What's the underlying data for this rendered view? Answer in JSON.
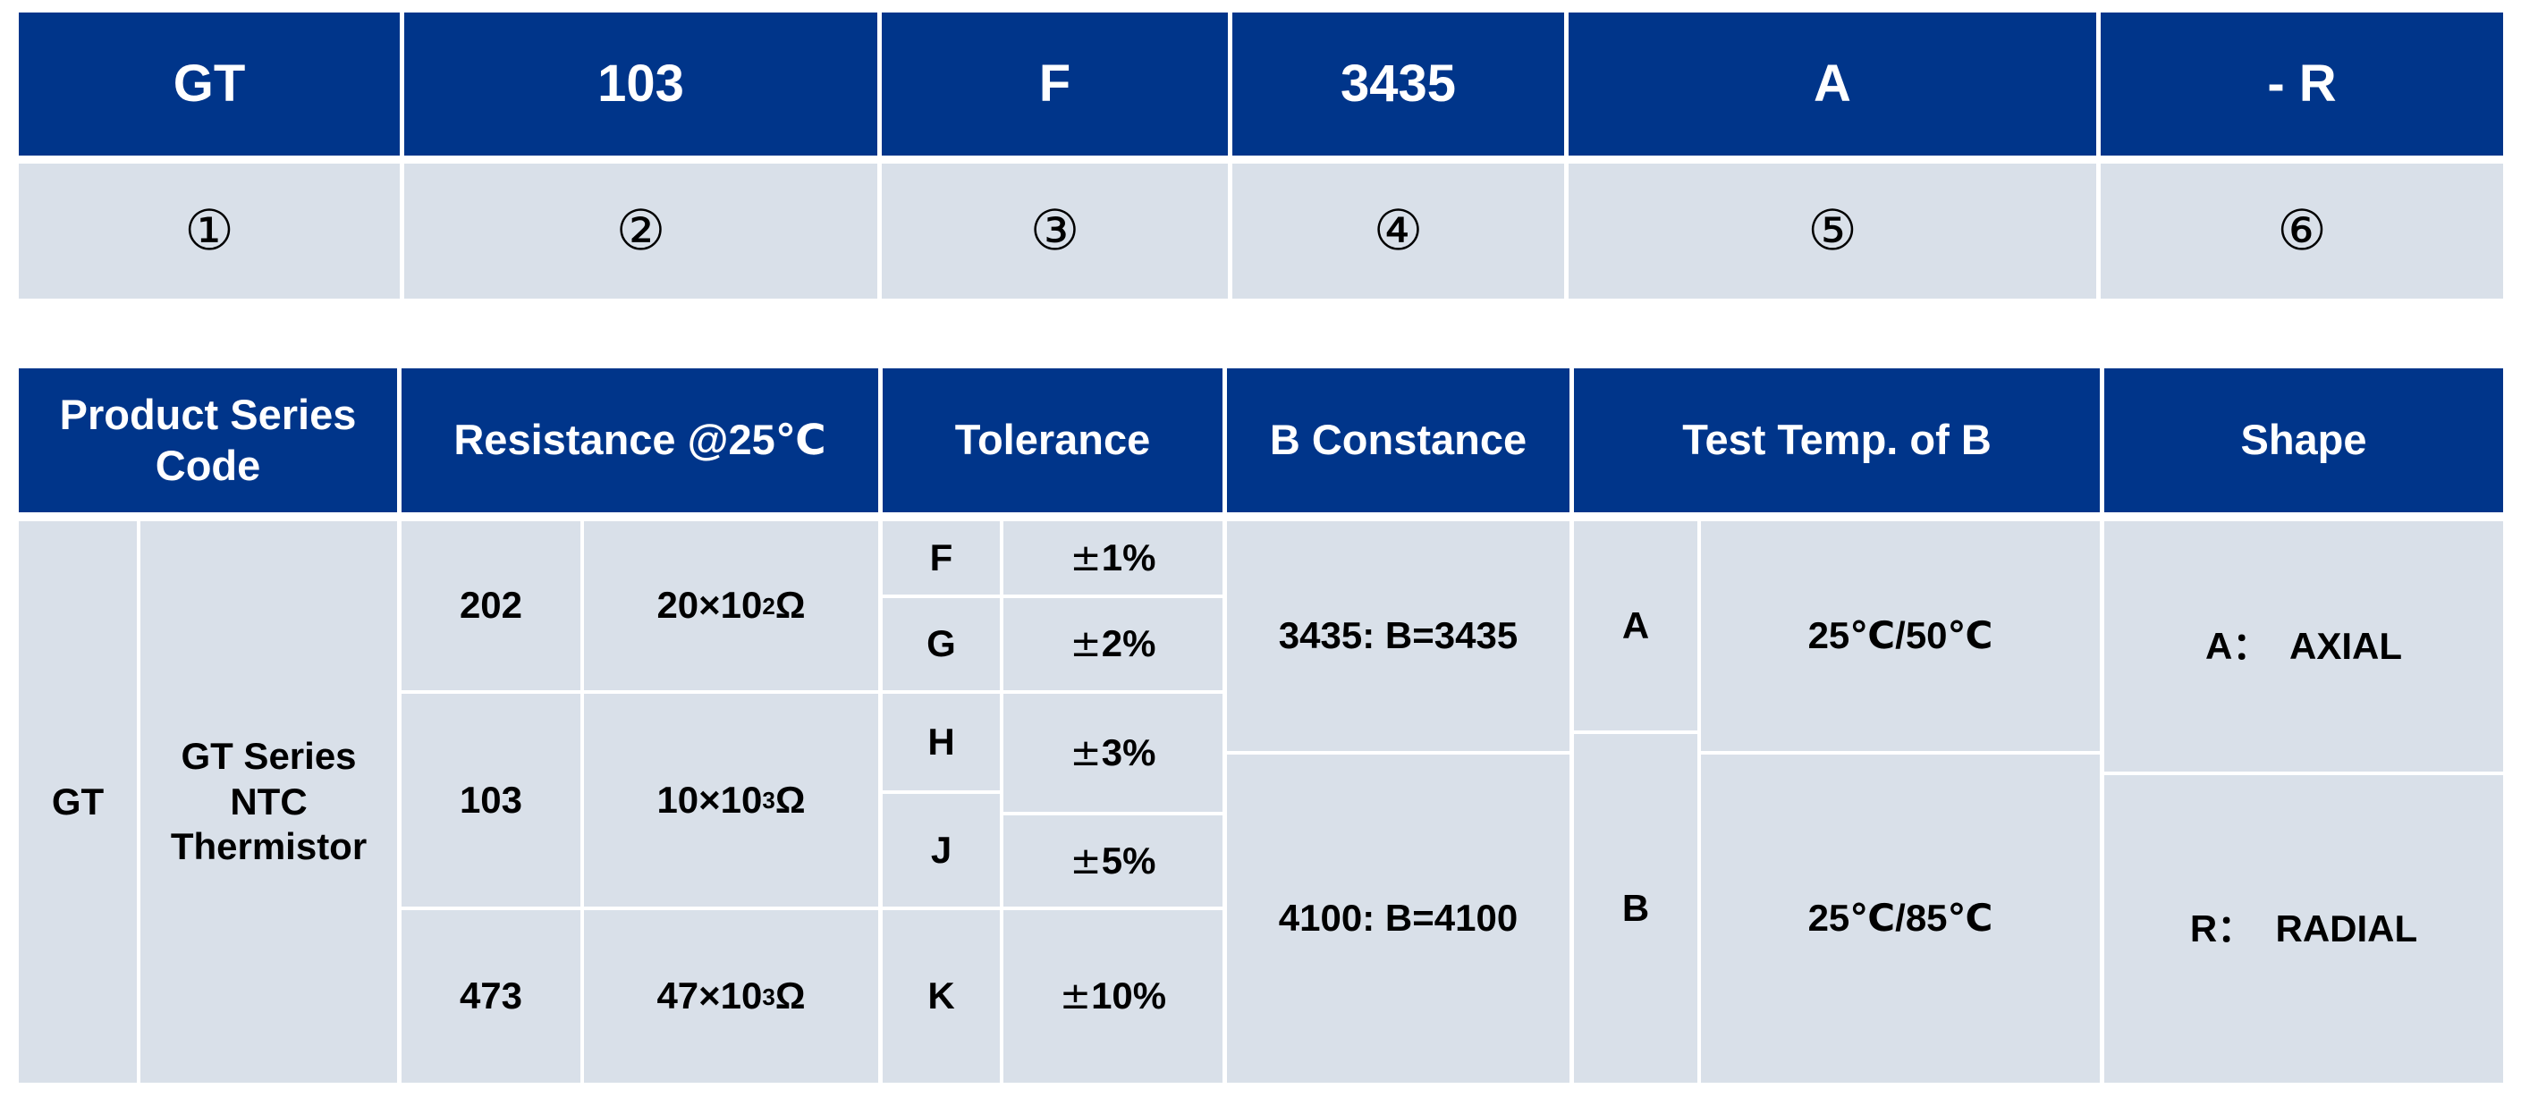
{
  "code_row": [
    "GT",
    "103",
    "F",
    "3435",
    "A",
    "- R"
  ],
  "index_row": [
    "①",
    "②",
    "③",
    "④",
    "⑤",
    "⑥"
  ],
  "headers": {
    "series": "Product Series Code",
    "resistance": "Resistance @25℃",
    "tolerance": "Tolerance",
    "b_constance": "B Constance",
    "test_temp": "Test Temp. of B",
    "shape": "Shape"
  },
  "series": {
    "code": "GT",
    "desc_line1": "GT Series",
    "desc_line2": "NTC",
    "desc_line3": "Thermistor"
  },
  "resistance": [
    {
      "code": "202",
      "base": "20×10",
      "exp": "2",
      "unit": "Ω"
    },
    {
      "code": "103",
      "base": "10×10",
      "exp": "3",
      "unit": "Ω"
    },
    {
      "code": "473",
      "base": "47×10",
      "exp": "3",
      "unit": "Ω"
    }
  ],
  "tolerance": [
    {
      "code": "F",
      "pm": "±",
      "value": "1%"
    },
    {
      "code": "G",
      "pm": "±",
      "value": "2%"
    },
    {
      "code": "H",
      "pm": "±",
      "value": "3%"
    },
    {
      "code": "J",
      "pm": "±",
      "value": "5%"
    },
    {
      "code": "K",
      "pm": "±",
      "value": "10%"
    }
  ],
  "b_constance": [
    "3435: B=3435",
    "4100: B=4100"
  ],
  "test_temp": [
    {
      "code": "A",
      "value": "25℃/50℃"
    },
    {
      "code": "B",
      "value": "25℃/85℃"
    }
  ],
  "shape": [
    "A：  AXIAL",
    "R：  RADIAL"
  ],
  "colors": {
    "header_bg": "#00358A",
    "body_bg": "#D9E0E9",
    "header_text": "#FFFFFF"
  }
}
